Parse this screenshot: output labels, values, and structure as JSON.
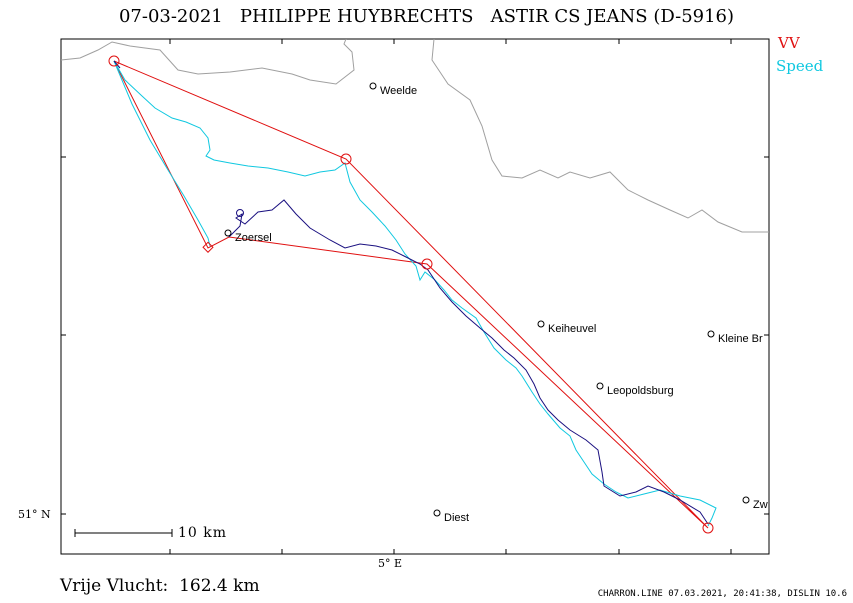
{
  "header": {
    "date": "07-03-2021",
    "pilot": "PHILIPPE HUYBRECHTS",
    "glider": "ASTIR CS JEANS (D-5916)"
  },
  "legend": {
    "vv": "VV",
    "speed": "Speed"
  },
  "colors": {
    "task": "#e01010",
    "speed": "#10c8e0",
    "vario": "#1a1080",
    "border": "#a0a0a0"
  },
  "axes": {
    "lat_label": "51° N",
    "lon_label": "5° E"
  },
  "scale": {
    "label": "10 km"
  },
  "towns": {
    "weelde": "Weelde",
    "zoersel": "Zoersel",
    "keiheuvel": "Keiheuvel",
    "kleine_br": "Kleine Br",
    "leopoldsburg": "Leopoldsburg",
    "diest": "Diest",
    "zw": "Zw"
  },
  "summary": {
    "distance": "Vrije Vlucht:  162.4 km"
  },
  "footer": "CHARRON.LINE 07.03.2021, 20:41:38, DISLIN 10.6"
}
